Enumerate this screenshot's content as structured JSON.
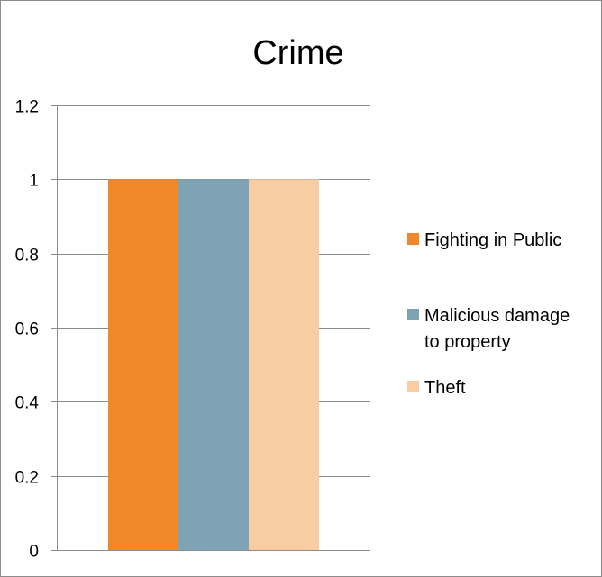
{
  "chart_data": {
    "type": "bar",
    "title": "Crime",
    "xlabel": "",
    "ylabel": "",
    "categories": [
      ""
    ],
    "series": [
      {
        "name": "Fighting in Public",
        "values": [
          1
        ],
        "color": "#f0882a"
      },
      {
        "name": "Malicious damage to property",
        "values": [
          1
        ],
        "color": "#7ea3b4"
      },
      {
        "name": "Theft",
        "values": [
          1
        ],
        "color": "#f8cda4"
      }
    ],
    "ylim": [
      0,
      1.2
    ],
    "yticks": [
      "0",
      "0.2",
      "0.4",
      "0.6",
      "0.8",
      "1",
      "1.2"
    ],
    "grid": true,
    "legend_position": "right"
  },
  "colors": {
    "gridline": "#8c8c8c",
    "axis": "#8c8c8c"
  }
}
